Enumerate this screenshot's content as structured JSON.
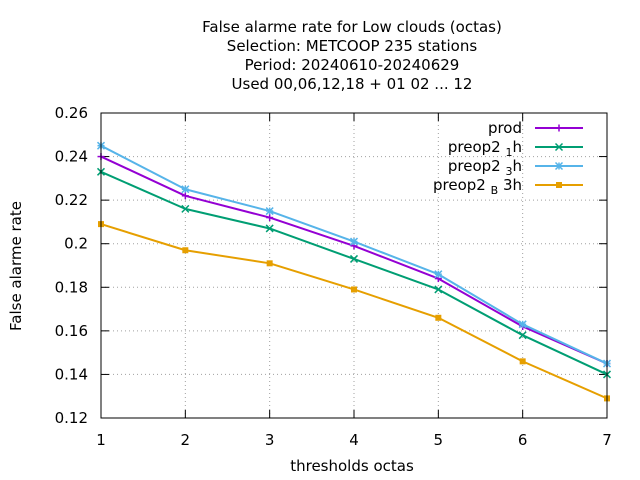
{
  "chart_data": {
    "type": "line",
    "title_lines": [
      "False alarme rate  for Low clouds (octas)",
      "Selection: METCOOP    235 stations",
      "Period: 20240610-20240629",
      "Used  00,06,12,18 + 01 02 ... 12"
    ],
    "xlabel": "thresholds octas",
    "ylabel": "False alarme rate",
    "x": [
      1,
      2,
      3,
      4,
      5,
      6,
      7
    ],
    "xlim": [
      1,
      7
    ],
    "ylim": [
      0.12,
      0.26
    ],
    "yticks": [
      0.12,
      0.14,
      0.16,
      0.18,
      0.2,
      0.22,
      0.24,
      0.26
    ],
    "ytick_labels": [
      "0.12",
      "0.14",
      "0.16",
      "0.18",
      "0.2",
      "0.22",
      "0.24",
      "0.26"
    ],
    "xtick_labels": [
      "1",
      "2",
      "3",
      "4",
      "5",
      "6",
      "7"
    ],
    "grid": true,
    "legend_position": "top-right",
    "series": [
      {
        "name": "prod",
        "name_base": "prod",
        "name_sub": "",
        "name_tail": "",
        "color": "#9400d3",
        "marker": "plus",
        "values": [
          0.24,
          0.222,
          0.212,
          0.199,
          0.184,
          0.162,
          0.145
        ]
      },
      {
        "name": "preop2 1 h",
        "name_base": "preop2 ",
        "name_sub": "1",
        "name_tail": "h",
        "color": "#009e73",
        "marker": "cross",
        "values": [
          0.233,
          0.216,
          0.207,
          0.193,
          0.179,
          0.158,
          0.14
        ]
      },
      {
        "name": "preop2 3 h",
        "name_base": "preop2 ",
        "name_sub": "3",
        "name_tail": "h",
        "color": "#56b4e9",
        "marker": "star",
        "values": [
          0.245,
          0.225,
          0.215,
          0.201,
          0.186,
          0.163,
          0.145
        ]
      },
      {
        "name": "preop2 B 3h",
        "name_base": "preop2 ",
        "name_sub": "B",
        "name_tail": " 3h",
        "color": "#e69f00",
        "marker": "box",
        "values": [
          0.209,
          0.197,
          0.191,
          0.179,
          0.166,
          0.146,
          0.129
        ]
      }
    ]
  }
}
